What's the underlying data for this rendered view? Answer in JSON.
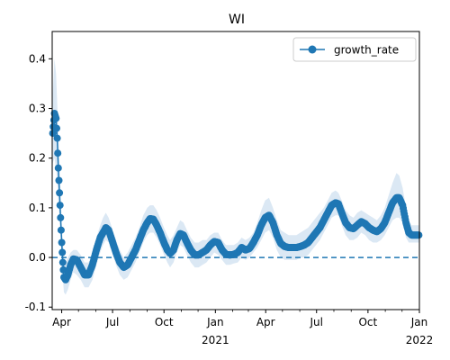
{
  "chart_data": {
    "type": "line",
    "title": "WI",
    "xlabel": "",
    "ylabel": "",
    "x_axis": "date",
    "xlim": [
      "2020-03-15",
      "2022-01-01"
    ],
    "ylim": [
      -0.105,
      0.455
    ],
    "yticks": [
      -0.1,
      0.0,
      0.1,
      0.2,
      0.3,
      0.4
    ],
    "ytick_labels": [
      "-0.1",
      "0.0",
      "0.1",
      "0.2",
      "0.3",
      "0.4"
    ],
    "xticks": [
      {
        "date": "2020-04-01",
        "label": "Apr",
        "year": ""
      },
      {
        "date": "2020-07-01",
        "label": "Jul",
        "year": ""
      },
      {
        "date": "2020-10-01",
        "label": "Oct",
        "year": ""
      },
      {
        "date": "2021-01-01",
        "label": "Jan",
        "year": "2021"
      },
      {
        "date": "2021-04-01",
        "label": "Apr",
        "year": ""
      },
      {
        "date": "2021-07-01",
        "label": "Jul",
        "year": ""
      },
      {
        "date": "2021-10-01",
        "label": "Oct",
        "year": ""
      },
      {
        "date": "2022-01-01",
        "label": "Jan",
        "year": "2022"
      }
    ],
    "legend": {
      "position": "top-right",
      "entries": [
        "growth_rate"
      ]
    },
    "grid": false,
    "reference_line": {
      "y": 0.0,
      "style": "dashed"
    },
    "series": [
      {
        "name": "growth_rate",
        "color": "#1f77b4",
        "band_color": "#dbe8f4",
        "marker": "circle",
        "points": [
          [
            "2020-03-16",
            0.25,
            0.33,
            0.19
          ],
          [
            "2020-03-19",
            0.29,
            0.4,
            0.2
          ],
          [
            "2020-03-22",
            0.28,
            0.37,
            0.18
          ],
          [
            "2020-03-24",
            0.24,
            0.31,
            0.15
          ],
          [
            "2020-03-26",
            0.18,
            0.25,
            0.11
          ],
          [
            "2020-03-28",
            0.13,
            0.19,
            0.08
          ],
          [
            "2020-03-30",
            0.08,
            0.13,
            0.04
          ],
          [
            "2020-04-01",
            0.03,
            0.07,
            0.0
          ],
          [
            "2020-04-03",
            -0.01,
            0.03,
            -0.04
          ],
          [
            "2020-04-05",
            -0.04,
            0.0,
            -0.07
          ],
          [
            "2020-04-08",
            -0.045,
            -0.01,
            -0.075
          ],
          [
            "2020-04-12",
            -0.035,
            0.0,
            -0.065
          ],
          [
            "2020-04-17",
            -0.015,
            0.01,
            -0.045
          ],
          [
            "2020-04-22",
            -0.003,
            0.015,
            -0.03
          ],
          [
            "2020-04-28",
            -0.005,
            0.015,
            -0.035
          ],
          [
            "2020-05-05",
            -0.02,
            0.005,
            -0.045
          ],
          [
            "2020-05-12",
            -0.035,
            -0.01,
            -0.06
          ],
          [
            "2020-05-19",
            -0.035,
            -0.01,
            -0.06
          ],
          [
            "2020-05-26",
            -0.015,
            0.01,
            -0.045
          ],
          [
            "2020-06-02",
            0.015,
            0.04,
            -0.015
          ],
          [
            "2020-06-09",
            0.04,
            0.065,
            0.01
          ],
          [
            "2020-06-14",
            0.05,
            0.08,
            0.025
          ],
          [
            "2020-06-19",
            0.06,
            0.09,
            0.035
          ],
          [
            "2020-06-24",
            0.055,
            0.08,
            0.03
          ],
          [
            "2020-06-30",
            0.035,
            0.06,
            0.01
          ],
          [
            "2020-07-07",
            0.01,
            0.035,
            -0.015
          ],
          [
            "2020-07-14",
            -0.01,
            0.015,
            -0.035
          ],
          [
            "2020-07-21",
            -0.02,
            0.0,
            -0.045
          ],
          [
            "2020-07-28",
            -0.015,
            0.01,
            -0.04
          ],
          [
            "2020-08-04",
            0.0,
            0.025,
            -0.025
          ],
          [
            "2020-08-11",
            0.015,
            0.04,
            -0.01
          ],
          [
            "2020-08-18",
            0.035,
            0.06,
            0.01
          ],
          [
            "2020-08-25",
            0.055,
            0.085,
            0.03
          ],
          [
            "2020-09-01",
            0.07,
            0.1,
            0.045
          ],
          [
            "2020-09-06",
            0.078,
            0.105,
            0.05
          ],
          [
            "2020-09-12",
            0.077,
            0.105,
            0.05
          ],
          [
            "2020-09-18",
            0.065,
            0.095,
            0.04
          ],
          [
            "2020-09-24",
            0.05,
            0.08,
            0.025
          ],
          [
            "2020-10-01",
            0.03,
            0.06,
            0.005
          ],
          [
            "2020-10-07",
            0.015,
            0.045,
            -0.01
          ],
          [
            "2020-10-12",
            0.008,
            0.035,
            -0.02
          ],
          [
            "2020-10-18",
            0.015,
            0.045,
            -0.01
          ],
          [
            "2020-10-24",
            0.035,
            0.06,
            0.01
          ],
          [
            "2020-10-30",
            0.048,
            0.075,
            0.025
          ],
          [
            "2020-11-05",
            0.045,
            0.07,
            0.02
          ],
          [
            "2020-11-11",
            0.03,
            0.055,
            0.005
          ],
          [
            "2020-11-18",
            0.015,
            0.04,
            -0.01
          ],
          [
            "2020-11-25",
            0.005,
            0.03,
            -0.02
          ],
          [
            "2020-12-02",
            0.005,
            0.03,
            -0.02
          ],
          [
            "2020-12-09",
            0.01,
            0.035,
            -0.015
          ],
          [
            "2020-12-16",
            0.015,
            0.035,
            -0.01
          ],
          [
            "2020-12-23",
            0.025,
            0.045,
            0.0
          ],
          [
            "2020-12-30",
            0.032,
            0.05,
            0.01
          ],
          [
            "2021-01-06",
            0.03,
            0.05,
            0.005
          ],
          [
            "2021-01-13",
            0.015,
            0.035,
            -0.005
          ],
          [
            "2021-01-20",
            0.006,
            0.025,
            -0.015
          ],
          [
            "2021-01-27",
            0.005,
            0.025,
            -0.015
          ],
          [
            "2021-02-03",
            0.006,
            0.025,
            -0.012
          ],
          [
            "2021-02-10",
            0.01,
            0.03,
            -0.01
          ],
          [
            "2021-02-17",
            0.02,
            0.04,
            0.0
          ],
          [
            "2021-02-24",
            0.015,
            0.035,
            -0.005
          ],
          [
            "2021-03-03",
            0.018,
            0.04,
            0.0
          ],
          [
            "2021-03-10",
            0.03,
            0.05,
            0.01
          ],
          [
            "2021-03-17",
            0.045,
            0.07,
            0.02
          ],
          [
            "2021-03-24",
            0.065,
            0.095,
            0.035
          ],
          [
            "2021-03-31",
            0.08,
            0.115,
            0.05
          ],
          [
            "2021-04-07",
            0.085,
            0.12,
            0.055
          ],
          [
            "2021-04-14",
            0.07,
            0.1,
            0.04
          ],
          [
            "2021-04-21",
            0.045,
            0.075,
            0.015
          ],
          [
            "2021-04-28",
            0.028,
            0.055,
            0.0
          ],
          [
            "2021-05-05",
            0.022,
            0.05,
            -0.005
          ],
          [
            "2021-05-12",
            0.02,
            0.045,
            -0.005
          ],
          [
            "2021-05-19",
            0.02,
            0.045,
            -0.005
          ],
          [
            "2021-05-26",
            0.02,
            0.045,
            -0.005
          ],
          [
            "2021-06-02",
            0.022,
            0.05,
            0.0
          ],
          [
            "2021-06-09",
            0.025,
            0.055,
            0.0
          ],
          [
            "2021-06-16",
            0.03,
            0.06,
            0.005
          ],
          [
            "2021-06-23",
            0.04,
            0.07,
            0.015
          ],
          [
            "2021-06-30",
            0.05,
            0.08,
            0.025
          ],
          [
            "2021-07-07",
            0.06,
            0.09,
            0.035
          ],
          [
            "2021-07-14",
            0.075,
            0.1,
            0.05
          ],
          [
            "2021-07-21",
            0.09,
            0.115,
            0.065
          ],
          [
            "2021-07-28",
            0.105,
            0.13,
            0.08
          ],
          [
            "2021-08-04",
            0.11,
            0.135,
            0.085
          ],
          [
            "2021-08-09",
            0.108,
            0.13,
            0.085
          ],
          [
            "2021-08-15",
            0.09,
            0.115,
            0.065
          ],
          [
            "2021-08-22",
            0.07,
            0.095,
            0.045
          ],
          [
            "2021-08-29",
            0.06,
            0.085,
            0.035
          ],
          [
            "2021-09-05",
            0.058,
            0.08,
            0.035
          ],
          [
            "2021-09-12",
            0.065,
            0.09,
            0.04
          ],
          [
            "2021-09-19",
            0.072,
            0.095,
            0.05
          ],
          [
            "2021-09-26",
            0.068,
            0.09,
            0.045
          ],
          [
            "2021-10-03",
            0.06,
            0.085,
            0.035
          ],
          [
            "2021-10-10",
            0.055,
            0.08,
            0.03
          ],
          [
            "2021-10-17",
            0.052,
            0.075,
            0.03
          ],
          [
            "2021-10-24",
            0.058,
            0.085,
            0.035
          ],
          [
            "2021-10-31",
            0.07,
            0.1,
            0.045
          ],
          [
            "2021-11-07",
            0.09,
            0.125,
            0.06
          ],
          [
            "2021-11-14",
            0.11,
            0.15,
            0.075
          ],
          [
            "2021-11-21",
            0.12,
            0.17,
            0.08
          ],
          [
            "2021-11-26",
            0.12,
            0.165,
            0.08
          ],
          [
            "2021-12-02",
            0.105,
            0.14,
            0.07
          ],
          [
            "2021-12-08",
            0.07,
            0.1,
            0.04
          ],
          [
            "2021-12-13",
            0.05,
            0.075,
            0.03
          ],
          [
            "2021-12-18",
            0.045,
            0.065,
            0.03
          ],
          [
            "2021-12-24",
            0.045,
            0.065,
            0.03
          ],
          [
            "2021-12-31",
            0.045,
            0.065,
            0.03
          ]
        ]
      }
    ]
  }
}
